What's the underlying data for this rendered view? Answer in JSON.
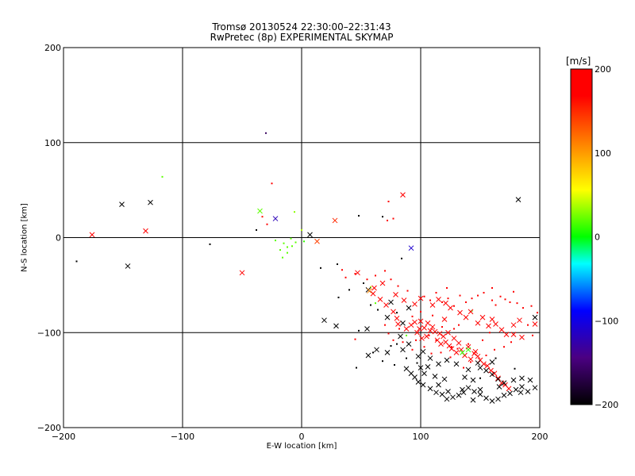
{
  "title_line1": "Tromsø 20130524 22:30:00–22:31:43",
  "title_line2": "RwPretec (8p) EXPERIMENTAL SKYMAP",
  "chart_data": {
    "type": "scatter",
    "xlabel": "E-W location [km]",
    "ylabel": "N-S location [km]",
    "xlim": [
      -200,
      200
    ],
    "ylim": [
      -200,
      200
    ],
    "xticks": [
      -200,
      -100,
      0,
      100,
      200
    ],
    "yticks": [
      -200,
      -100,
      0,
      100,
      200
    ],
    "grid": true,
    "colorbar": {
      "label": "[m/s]",
      "range": [
        -200,
        200
      ],
      "ticks": [
        200,
        100,
        0,
        -100,
        -200
      ],
      "colormap": [
        "#000000",
        "#4b0082",
        "#0000ff",
        "#00ffff",
        "#00ff00",
        "#ffff00",
        "#ff8000",
        "#ff0000"
      ]
    },
    "crosses": [
      [
        -176,
        3,
        190
      ],
      [
        -151,
        35,
        -200
      ],
      [
        -146,
        -30,
        -200
      ],
      [
        -131,
        7,
        190
      ],
      [
        -127,
        37,
        -200
      ],
      [
        -50,
        -37,
        190
      ],
      [
        -35,
        28,
        20
      ],
      [
        -22,
        20,
        -120
      ],
      [
        7,
        3,
        -200
      ],
      [
        13,
        -4,
        140
      ],
      [
        28,
        18,
        150
      ],
      [
        47,
        -37,
        190
      ],
      [
        85,
        45,
        190
      ],
      [
        92,
        -11,
        -110
      ],
      [
        182,
        40,
        -200
      ],
      [
        19,
        -87,
        -200
      ],
      [
        29,
        -93,
        -200
      ],
      [
        55,
        -96,
        -200
      ],
      [
        56,
        -55,
        -200
      ],
      [
        57,
        -56,
        110
      ],
      [
        60,
        -59,
        190
      ],
      [
        66,
        -65,
        190
      ],
      [
        71,
        -71,
        190
      ],
      [
        72,
        -84,
        -200
      ],
      [
        77,
        -78,
        190
      ],
      [
        80,
        -85,
        190
      ],
      [
        81,
        -91,
        190
      ],
      [
        83,
        -104,
        -200
      ],
      [
        85,
        -90,
        -200
      ],
      [
        88,
        -96,
        190
      ],
      [
        90,
        -74,
        -200
      ],
      [
        92,
        -92,
        190
      ],
      [
        95,
        -89,
        190
      ],
      [
        97,
        -100,
        190
      ],
      [
        99,
        -96,
        190
      ],
      [
        100,
        -88,
        190
      ],
      [
        101,
        -106,
        190
      ],
      [
        103,
        -95,
        190
      ],
      [
        105,
        -104,
        190
      ],
      [
        106,
        -90,
        190
      ],
      [
        108,
        -98,
        190
      ],
      [
        110,
        -94,
        190
      ],
      [
        112,
        -99,
        190
      ],
      [
        114,
        -108,
        190
      ],
      [
        116,
        -101,
        190
      ],
      [
        117,
        -112,
        190
      ],
      [
        119,
        -104,
        190
      ],
      [
        121,
        -110,
        190
      ],
      [
        123,
        -100,
        190
      ],
      [
        124,
        -114,
        190
      ],
      [
        126,
        -117,
        190
      ],
      [
        128,
        -106,
        190
      ],
      [
        130,
        -121,
        190
      ],
      [
        132,
        -111,
        190
      ],
      [
        134,
        -118,
        190
      ],
      [
        137,
        -124,
        190
      ],
      [
        140,
        -115,
        190
      ],
      [
        142,
        -128,
        190
      ],
      [
        145,
        -122,
        190
      ],
      [
        148,
        -125,
        190
      ],
      [
        150,
        -129,
        190
      ],
      [
        153,
        -133,
        190
      ],
      [
        156,
        -135,
        190
      ],
      [
        159,
        -140,
        190
      ],
      [
        162,
        -143,
        190
      ],
      [
        165,
        -148,
        190
      ],
      [
        168,
        -153,
        190
      ],
      [
        171,
        -155,
        190
      ],
      [
        174,
        -159,
        190
      ],
      [
        120,
        -86,
        190
      ],
      [
        125,
        -74,
        190
      ],
      [
        133,
        -79,
        190
      ],
      [
        138,
        -84,
        190
      ],
      [
        142,
        -78,
        190
      ],
      [
        148,
        -90,
        190
      ],
      [
        152,
        -84,
        190
      ],
      [
        157,
        -93,
        190
      ],
      [
        160,
        -86,
        190
      ],
      [
        163,
        -91,
        190
      ],
      [
        168,
        -97,
        190
      ],
      [
        172,
        -102,
        190
      ],
      [
        178,
        -92,
        190
      ],
      [
        183,
        -87,
        190
      ],
      [
        196,
        -84,
        -200
      ],
      [
        196,
        -91,
        190
      ],
      [
        110,
        -71,
        190
      ],
      [
        115,
        -65,
        190
      ],
      [
        121,
        -69,
        190
      ],
      [
        95,
        -70,
        190
      ],
      [
        100,
        -64,
        190
      ],
      [
        79,
        -60,
        190
      ],
      [
        86,
        -66,
        190
      ],
      [
        68,
        -48,
        190
      ],
      [
        61,
        -53,
        190
      ],
      [
        75,
        -68,
        -200
      ],
      [
        140,
        -118,
        10
      ],
      [
        146,
        -120,
        190
      ],
      [
        135,
        -121,
        10
      ],
      [
        178,
        -102,
        190
      ],
      [
        185,
        -105,
        190
      ],
      [
        56,
        -124,
        -200
      ],
      [
        63,
        -118,
        -200
      ],
      [
        72,
        -121,
        -200
      ],
      [
        85,
        -118,
        -200
      ],
      [
        90,
        -112,
        -200
      ],
      [
        98,
        -125,
        -200
      ],
      [
        102,
        -120,
        -200
      ],
      [
        108,
        -127,
        -200
      ],
      [
        115,
        -133,
        -200
      ],
      [
        122,
        -129,
        -200
      ],
      [
        130,
        -133,
        -200
      ],
      [
        88,
        -138,
        -200
      ],
      [
        92,
        -143,
        -200
      ],
      [
        95,
        -147,
        -200
      ],
      [
        98,
        -152,
        -200
      ],
      [
        102,
        -155,
        -200
      ],
      [
        108,
        -159,
        -200
      ],
      [
        113,
        -163,
        -200
      ],
      [
        118,
        -165,
        -200
      ],
      [
        122,
        -170,
        -200
      ],
      [
        127,
        -168,
        -200
      ],
      [
        132,
        -166,
        -200
      ],
      [
        136,
        -163,
        -200
      ],
      [
        140,
        -158,
        -200
      ],
      [
        145,
        -162,
        -200
      ],
      [
        150,
        -165,
        -200
      ],
      [
        155,
        -169,
        -200
      ],
      [
        160,
        -172,
        -200
      ],
      [
        165,
        -170,
        -200
      ],
      [
        170,
        -166,
        -200
      ],
      [
        175,
        -164,
        -200
      ],
      [
        180,
        -160,
        -200
      ],
      [
        185,
        -157,
        -200
      ],
      [
        190,
        -162,
        -200
      ],
      [
        196,
        -158,
        -200
      ],
      [
        150,
        -137,
        -200
      ],
      [
        155,
        -140,
        -200
      ],
      [
        160,
        -144,
        -200
      ],
      [
        165,
        -149,
        -200
      ],
      [
        170,
        -153,
        -200
      ],
      [
        178,
        -150,
        -200
      ],
      [
        185,
        -148,
        -200
      ],
      [
        192,
        -150,
        -200
      ],
      [
        103,
        -143,
        -200
      ],
      [
        112,
        -146,
        -200
      ],
      [
        120,
        -149,
        -200
      ],
      [
        137,
        -147,
        -200
      ],
      [
        144,
        -150,
        -200
      ],
      [
        150,
        -160,
        -200
      ],
      [
        123,
        -162,
        -200
      ],
      [
        115,
        -155,
        -200
      ],
      [
        106,
        -136,
        -200
      ],
      [
        100,
        -137,
        -200
      ],
      [
        140,
        -139,
        -200
      ],
      [
        148,
        -132,
        -200
      ],
      [
        160,
        -131,
        -200
      ],
      [
        184,
        -163,
        -200
      ],
      [
        166,
        -157,
        -200
      ],
      [
        144,
        -171,
        -200
      ],
      [
        135,
        -160,
        -200
      ]
    ],
    "dots": [
      [
        -189,
        -25,
        -200
      ],
      [
        -117,
        64,
        20
      ],
      [
        -77,
        -7,
        -200
      ],
      [
        -30,
        110,
        -160
      ],
      [
        -25,
        57,
        190
      ],
      [
        -38,
        8,
        -200
      ],
      [
        -33,
        22,
        160
      ],
      [
        -29,
        14,
        190
      ],
      [
        -15,
        -6,
        20
      ],
      [
        -12,
        -10,
        20
      ],
      [
        -9,
        -1,
        20
      ],
      [
        -8,
        -9,
        20
      ],
      [
        -12,
        -16,
        20
      ],
      [
        -18,
        -13,
        20
      ],
      [
        -6,
        27,
        30
      ],
      [
        -22,
        -3,
        20
      ],
      [
        -5,
        -5,
        20
      ],
      [
        -16,
        -21,
        20
      ],
      [
        0,
        8,
        40
      ],
      [
        2,
        -4,
        10
      ],
      [
        48,
        23,
        -200
      ],
      [
        68,
        22,
        -200
      ],
      [
        72,
        18,
        180
      ],
      [
        77,
        20,
        190
      ],
      [
        73,
        38,
        190
      ],
      [
        30,
        -28,
        -200
      ],
      [
        37,
        -42,
        190
      ],
      [
        45,
        -38,
        190
      ],
      [
        52,
        -48,
        -200
      ],
      [
        40,
        -55,
        -200
      ],
      [
        31,
        -63,
        -200
      ],
      [
        55,
        -44,
        190
      ],
      [
        62,
        -40,
        190
      ],
      [
        70,
        -35,
        190
      ],
      [
        75,
        -44,
        190
      ],
      [
        81,
        -51,
        190
      ],
      [
        89,
        -56,
        190
      ],
      [
        103,
        -62,
        190
      ],
      [
        108,
        -66,
        190
      ],
      [
        113,
        -58,
        190
      ],
      [
        118,
        -68,
        190
      ],
      [
        123,
        -64,
        190
      ],
      [
        128,
        -72,
        190
      ],
      [
        133,
        -61,
        190
      ],
      [
        138,
        -68,
        190
      ],
      [
        143,
        -64,
        190
      ],
      [
        148,
        -61,
        190
      ],
      [
        153,
        -58,
        190
      ],
      [
        160,
        -66,
        190
      ],
      [
        163,
        -71,
        190
      ],
      [
        167,
        -62,
        190
      ],
      [
        171,
        -65,
        190
      ],
      [
        175,
        -68,
        190
      ],
      [
        181,
        -69,
        190
      ],
      [
        186,
        -74,
        190
      ],
      [
        193,
        -72,
        190
      ],
      [
        198,
        -79,
        190
      ],
      [
        118,
        -94,
        190
      ],
      [
        128,
        -96,
        190
      ],
      [
        132,
        -92,
        190
      ],
      [
        107,
        -103,
        190
      ],
      [
        113,
        -108,
        190
      ],
      [
        126,
        -115,
        190
      ],
      [
        131,
        -117,
        190
      ],
      [
        140,
        -112,
        190
      ],
      [
        158,
        -100,
        190
      ],
      [
        176,
        -110,
        190
      ],
      [
        170,
        -115,
        190
      ],
      [
        162,
        -118,
        190
      ],
      [
        152,
        -108,
        190
      ],
      [
        190,
        -92,
        190
      ],
      [
        194,
        -103,
        190
      ],
      [
        85,
        -110,
        190
      ],
      [
        80,
        -112,
        -200
      ],
      [
        82,
        -96,
        190
      ],
      [
        45,
        -107,
        190
      ],
      [
        48,
        -98,
        -200
      ],
      [
        46,
        -137,
        -200
      ],
      [
        70,
        -92,
        190
      ],
      [
        73,
        -101,
        190
      ],
      [
        77,
        -108,
        190
      ],
      [
        93,
        -118,
        190
      ],
      [
        96,
        -108,
        190
      ],
      [
        103,
        -115,
        190
      ],
      [
        109,
        -122,
        190
      ],
      [
        117,
        -121,
        190
      ],
      [
        125,
        -126,
        190
      ],
      [
        136,
        -137,
        190
      ],
      [
        142,
        -131,
        190
      ],
      [
        155,
        -124,
        190
      ],
      [
        58,
        -71,
        -200
      ],
      [
        64,
        -76,
        -200
      ],
      [
        80,
        -79,
        -200
      ],
      [
        93,
        -83,
        190
      ],
      [
        100,
        -78,
        190
      ],
      [
        110,
        -82,
        190
      ],
      [
        97,
        -132,
        -200
      ],
      [
        78,
        -134,
        -200
      ],
      [
        68,
        -130,
        -200
      ],
      [
        60,
        -121,
        -200
      ],
      [
        75,
        -114,
        -200
      ],
      [
        88,
        -127,
        -200
      ],
      [
        150,
        -148,
        -200
      ],
      [
        163,
        -127,
        -200
      ],
      [
        179,
        -138,
        -200
      ],
      [
        84,
        -22,
        -200
      ],
      [
        16,
        -32,
        -200
      ],
      [
        34,
        -34,
        190
      ],
      [
        58,
        -52,
        40
      ],
      [
        62,
        -69,
        20
      ],
      [
        88,
        -103,
        20
      ],
      [
        143,
        -77,
        10
      ],
      [
        122,
        -53,
        190
      ],
      [
        160,
        -53,
        190
      ],
      [
        178,
        -57,
        190
      ]
    ]
  }
}
